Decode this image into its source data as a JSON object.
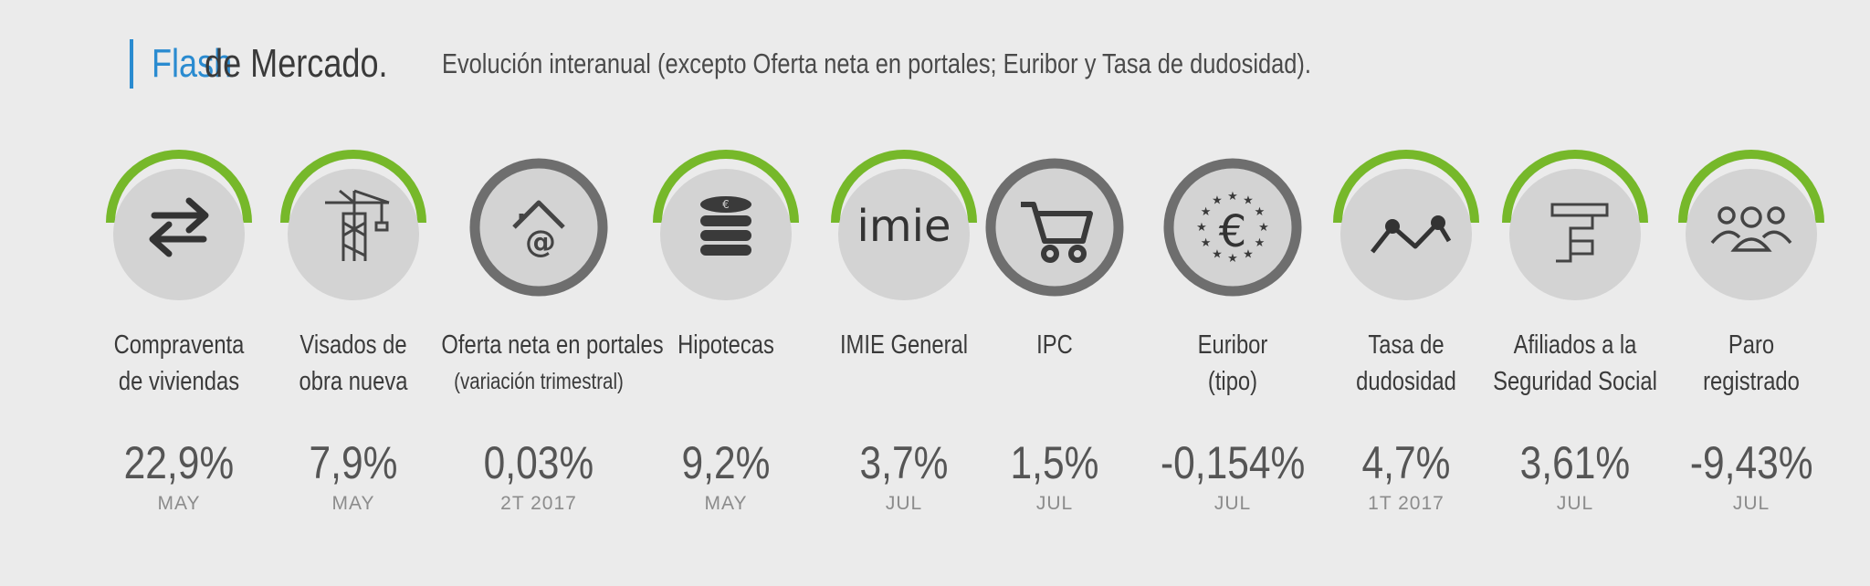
{
  "header": {
    "title_accent": "Flash",
    "title_rest": "de Mercado.",
    "subtitle": "Evolución interanual (excepto Oferta neta en portales; Euribor y Tasa de dudosidad)."
  },
  "colors": {
    "accent_blue": "#2a8bd0",
    "positive_arc": "#76b82a",
    "neutral_ring": "#6e6e6e",
    "circle_fill": "#d3d3d3"
  },
  "indicators": [
    {
      "icon": "arrows-exchange-icon",
      "label_line1": "Compraventa",
      "label_line2": "de viviendas",
      "value": "22,9%",
      "period": "MAY",
      "style": "arc"
    },
    {
      "icon": "crane-icon",
      "label_line1": "Visados de",
      "label_line2": "obra nueva",
      "value": "7,9%",
      "period": "MAY",
      "style": "arc"
    },
    {
      "icon": "house-at-icon",
      "label_line1": "Oferta neta en portales",
      "label_line2": "(variación trimestral)",
      "value": "0,03%",
      "period": "2T 2017",
      "style": "ring"
    },
    {
      "icon": "coins-euro-icon",
      "label_line1": "Hipotecas",
      "label_line2": "",
      "value": "9,2%",
      "period": "MAY",
      "style": "arc"
    },
    {
      "icon": "imie-logo-icon",
      "icon_text": "imie",
      "label_line1": "IMIE General",
      "label_line2": "",
      "value": "3,7%",
      "period": "JUL",
      "style": "arc"
    },
    {
      "icon": "shopping-cart-icon",
      "label_line1": "IPC",
      "label_line2": "",
      "value": "1,5%",
      "period": "JUL",
      "style": "ring"
    },
    {
      "icon": "euro-stars-icon",
      "label_line1": "Euribor",
      "label_line2": "(tipo)",
      "value": "-0,154%",
      "period": "JUL",
      "style": "ring"
    },
    {
      "icon": "line-chart-icon",
      "label_line1": "Tasa de",
      "label_line2": "dudosidad",
      "value": "4,7%",
      "period": "1T 2017",
      "style": "arc"
    },
    {
      "icon": "f-logo-icon",
      "label_line1": "Afiliados a la",
      "label_line2": "Seguridad Social",
      "value": "3,61%",
      "period": "JUL",
      "style": "arc"
    },
    {
      "icon": "people-group-icon",
      "label_line1": "Paro",
      "label_line2": "registrado",
      "value": "-9,43%",
      "period": "JUL",
      "style": "arc"
    }
  ]
}
